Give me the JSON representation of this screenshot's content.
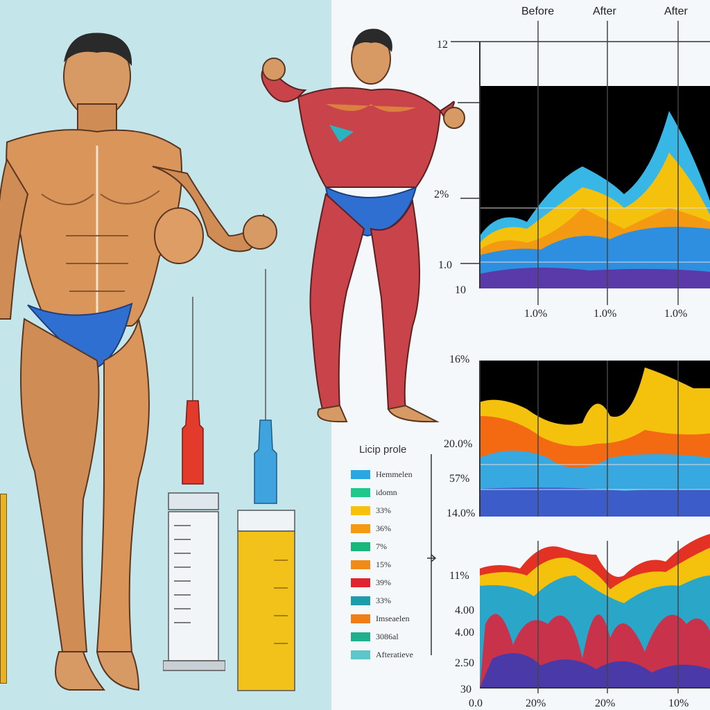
{
  "headers": {
    "col1": "Before",
    "col2": "After",
    "col3": "After"
  },
  "chart1": {
    "axis_labels": {
      "top": "12",
      "mid": "2%",
      "low": "1.0",
      "bottom": "10"
    },
    "x_labels": [
      "1.0%",
      "1.0%",
      "1.0%"
    ]
  },
  "chart2": {
    "axis_labels": {
      "top": "16%",
      "upper": "20.0%",
      "mid": "57%",
      "bottom": "14.0%"
    }
  },
  "chart3": {
    "axis_labels": {
      "top": "11%",
      "upper": "4.00",
      "mid": "4.00",
      "low": "2.50",
      "bottom": "30"
    },
    "x_labels": [
      "0.0",
      "20%",
      "20%",
      "10%"
    ]
  },
  "legend": {
    "title": "Licip prole",
    "items": [
      {
        "label": "Hemmelen",
        "color": "#2aa6e0"
      },
      {
        "label": "idomn",
        "color": "#1cc98a"
      },
      {
        "label": "33%",
        "color": "#f4c20d"
      },
      {
        "label": "36%",
        "color": "#f39a12"
      },
      {
        "label": "7%",
        "color": "#19b77c"
      },
      {
        "label": "15%",
        "color": "#f08b1a"
      },
      {
        "label": "39%",
        "color": "#e0232e"
      },
      {
        "label": "33%",
        "color": "#1d9cab"
      },
      {
        "label": "Imseaelen",
        "color": "#f07d18"
      },
      {
        "label": "3086al",
        "color": "#21b08d"
      },
      {
        "label": "Afteratieve",
        "color": "#5ec6c8"
      }
    ]
  },
  "colors": {
    "skin": "#d9955a",
    "muscle": "#c9444a",
    "shorts": "#2e6fd1",
    "plasma": "#f2c21a",
    "chart_bg": "#000000"
  }
}
